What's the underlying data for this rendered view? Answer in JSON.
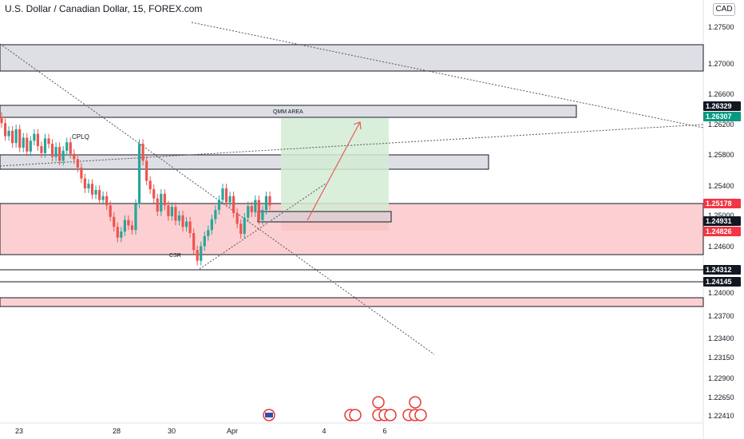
{
  "header": {
    "symbol_title": "U.S. Dollar / Canadian Dollar, 15, FOREX.com",
    "currency": "CAD"
  },
  "colors": {
    "up": "#26a69a",
    "down": "#ef5350",
    "zone_gray": "#d1d4dc",
    "zone_red": "#fccbcd",
    "target_green": "#d4ecd4",
    "stop_red": "#f9c3c3",
    "badge_dark": "#131722",
    "badge_red": "#f23645",
    "badge_green": "#089981"
  },
  "annotations": {
    "qmm_area": "QMM AREA",
    "cplq": "CPLQ",
    "low_label": "CSR"
  },
  "chart_data": {
    "type": "candlestick",
    "title": "U.S. Dollar / Canadian Dollar, 15, FOREX.com",
    "ylim": [
      1.2225,
      1.2775
    ],
    "y_ticks": [
      "1.27500",
      "1.27000",
      "1.26600",
      "1.26200",
      "1.25800",
      "1.25400",
      "1.25000",
      "1.24600",
      "1.24000",
      "1.23700",
      "1.23400",
      "1.23150",
      "1.22900",
      "1.22650",
      "1.22410"
    ],
    "x_ticks": [
      "23",
      "28",
      "30",
      "Apr",
      "4",
      "6"
    ],
    "price_badges": [
      {
        "value": "1.26329",
        "style": "dark"
      },
      {
        "value": "1.26307",
        "style": "green"
      },
      {
        "value": "1.25178",
        "style": "red"
      },
      {
        "value": "1.24931",
        "style": "dark"
      },
      {
        "value": "1.24826",
        "style": "red"
      },
      {
        "value": "1.24312",
        "style": "dark"
      },
      {
        "value": "1.24145",
        "style": "dark"
      }
    ],
    "series": [
      {
        "name": "",
        "values": [
          1.2615,
          1.2598,
          1.2605,
          1.2589,
          1.2607,
          1.2583,
          1.2596,
          1.2578,
          1.2592,
          1.2601,
          1.2585,
          1.2576,
          1.2595,
          1.2588,
          1.2571,
          1.2584,
          1.2566,
          1.2579,
          1.259,
          1.2575,
          1.2568,
          1.2557,
          1.2543,
          1.253,
          1.2536,
          1.2522,
          1.2528,
          1.2515,
          1.252,
          1.2508,
          1.2493,
          1.248,
          1.2466,
          1.2474,
          1.2489,
          1.2482,
          1.2476,
          1.251,
          1.2588,
          1.2566,
          1.254,
          1.2529,
          1.2517,
          1.25,
          1.2523,
          1.2508,
          1.2494,
          1.2506,
          1.2488,
          1.2495,
          1.248,
          1.2487,
          1.2472,
          1.245,
          1.2436,
          1.2455,
          1.2468,
          1.2476,
          1.249,
          1.2502,
          1.2515,
          1.253,
          1.2512,
          1.252,
          1.2498,
          1.2484,
          1.2471,
          1.2492,
          1.2507,
          1.2499,
          1.2515,
          1.2489,
          1.2502,
          1.252,
          1.2508
        ]
      }
    ]
  }
}
